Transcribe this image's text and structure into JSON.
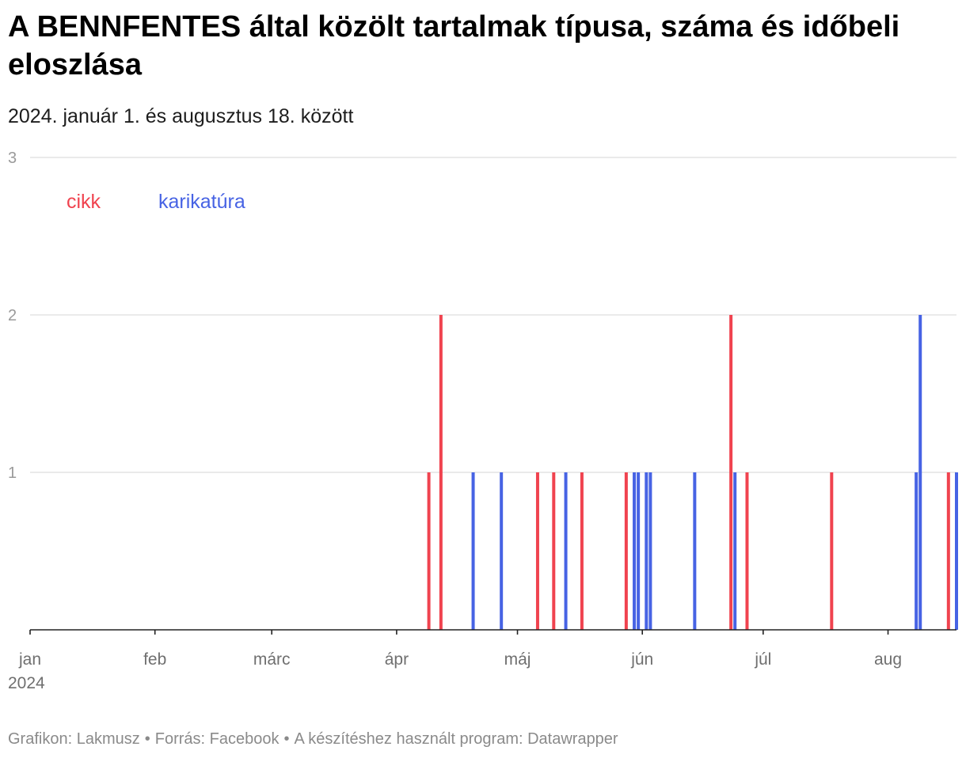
{
  "title": "A BENNFENTES által közölt tartalmak típusa, száma és időbeli eloszlása",
  "subtitle": "2024. január 1. és augusztus 18. között",
  "footer": {
    "chart_by": "Grafikon: Lakmusz",
    "source": "Forrás: Facebook",
    "tool": "A készítéshez használt program: Datawrapper",
    "separator": "•"
  },
  "chart_data": {
    "type": "bar",
    "title": "A BENNFENTES által közölt tartalmak típusa, száma és időbeli eloszlása",
    "subtitle": "2024. január 1. és augusztus 18. között",
    "xlabel": "",
    "ylabel": "",
    "x_range": [
      "2024-01-01",
      "2024-08-18"
    ],
    "ylim": [
      0,
      3
    ],
    "y_ticks": [
      1,
      2,
      3
    ],
    "x_ticks": [
      {
        "date": "2024-01-01",
        "label": "jan",
        "sublabel": "2024"
      },
      {
        "date": "2024-02-01",
        "label": "feb"
      },
      {
        "date": "2024-03-01",
        "label": "márc"
      },
      {
        "date": "2024-04-01",
        "label": "ápr"
      },
      {
        "date": "2024-05-01",
        "label": "máj"
      },
      {
        "date": "2024-06-01",
        "label": "jún"
      },
      {
        "date": "2024-07-01",
        "label": "júl"
      },
      {
        "date": "2024-08-01",
        "label": "aug"
      }
    ],
    "grid": true,
    "legend_position": "top-left",
    "series": [
      {
        "name": "cikk",
        "color": "#f0434f",
        "points": [
          {
            "date": "2024-04-09",
            "value": 1
          },
          {
            "date": "2024-04-12",
            "value": 2
          },
          {
            "date": "2024-05-06",
            "value": 1
          },
          {
            "date": "2024-05-10",
            "value": 1
          },
          {
            "date": "2024-05-17",
            "value": 1
          },
          {
            "date": "2024-05-28",
            "value": 1
          },
          {
            "date": "2024-06-23",
            "value": 2
          },
          {
            "date": "2024-06-27",
            "value": 1
          },
          {
            "date": "2024-07-18",
            "value": 1
          },
          {
            "date": "2024-08-16",
            "value": 1
          }
        ]
      },
      {
        "name": "karikatúra",
        "color": "#4763e4",
        "points": [
          {
            "date": "2024-04-20",
            "value": 1
          },
          {
            "date": "2024-04-27",
            "value": 1
          },
          {
            "date": "2024-05-13",
            "value": 1
          },
          {
            "date": "2024-05-30",
            "value": 1
          },
          {
            "date": "2024-05-31",
            "value": 1
          },
          {
            "date": "2024-06-02",
            "value": 1
          },
          {
            "date": "2024-06-03",
            "value": 1
          },
          {
            "date": "2024-06-14",
            "value": 1
          },
          {
            "date": "2024-06-24",
            "value": 1
          },
          {
            "date": "2024-08-08",
            "value": 1
          },
          {
            "date": "2024-08-09",
            "value": 2
          },
          {
            "date": "2024-08-18",
            "value": 1
          }
        ]
      }
    ]
  }
}
